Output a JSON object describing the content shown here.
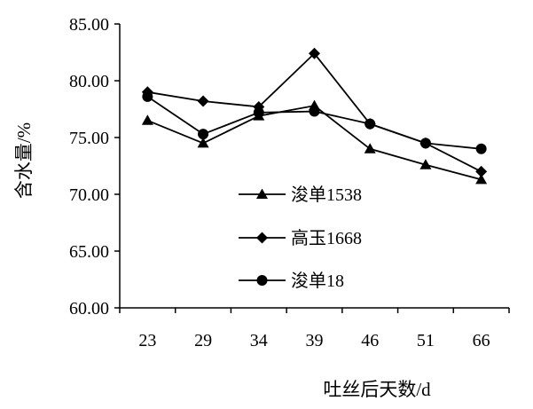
{
  "chart_data": {
    "type": "line",
    "categories": [
      "23",
      "29",
      "34",
      "39",
      "46",
      "51",
      "66"
    ],
    "series": [
      {
        "name": "浚单1538",
        "marker": "triangle",
        "values": [
          76.5,
          74.5,
          76.9,
          77.8,
          74.0,
          72.6,
          71.3
        ]
      },
      {
        "name": "高玉1668",
        "marker": "diamond",
        "values": [
          79.0,
          78.2,
          77.7,
          82.4,
          76.2,
          74.5,
          72.0
        ]
      },
      {
        "name": "浚单18",
        "marker": "circle",
        "values": [
          78.6,
          75.3,
          77.2,
          77.3,
          76.2,
          74.5,
          74.0
        ]
      }
    ],
    "ylim": [
      60,
      85
    ],
    "yticks": [
      60,
      65,
      70,
      75,
      80,
      85
    ],
    "ytick_labels": [
      "60.00",
      "65.00",
      "70.00",
      "75.00",
      "80.00",
      "85.00"
    ],
    "xlabel": "吐丝后天数/d",
    "ylabel": "含水量/%",
    "grid": false,
    "legend_position": "center-left inside plot",
    "colors": {
      "line": "#000000",
      "marker": "#000000",
      "axis": "#000000"
    }
  }
}
